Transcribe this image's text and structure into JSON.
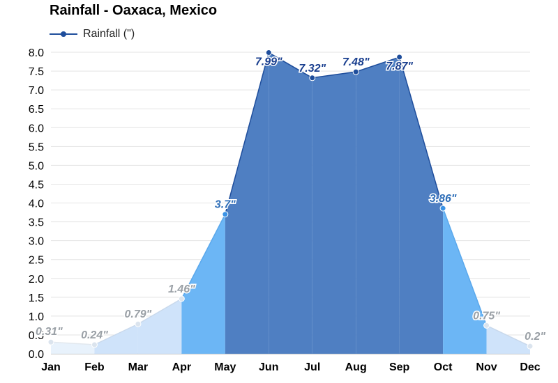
{
  "chart_data": {
    "type": "area",
    "title": "Rainfall - Oaxaca, Mexico",
    "legend": {
      "position": "top-left",
      "entries": [
        "Rainfall (\")"
      ]
    },
    "categories": [
      "Jan",
      "Feb",
      "Mar",
      "Apr",
      "May",
      "Jun",
      "Jul",
      "Aug",
      "Sep",
      "Oct",
      "Nov",
      "Dec"
    ],
    "series": [
      {
        "name": "Rainfall (\")",
        "values": [
          0.31,
          0.24,
          0.79,
          1.46,
          3.7,
          7.99,
          7.32,
          7.48,
          7.87,
          3.86,
          0.75,
          0.2
        ],
        "labels": [
          "0.31\"",
          "0.24\"",
          "0.79\"",
          "1.46\"",
          "3.7\"",
          "7.99\"",
          "7.32\"",
          "7.48\"",
          "7.87\"",
          "3.86\"",
          "0.75\"",
          "0.2\""
        ]
      }
    ],
    "ylim": [
      0,
      8
    ],
    "yticks": [
      "0.0",
      "0.5",
      "1.0",
      "1.5",
      "2.0",
      "2.5",
      "3.0",
      "3.5",
      "4.0",
      "4.5",
      "5.0",
      "5.5",
      "6.0",
      "6.5",
      "7.0",
      "7.5",
      "8.0"
    ],
    "grid": true,
    "colors": {
      "low_fill": "#e8f2fc",
      "mid_low_fill": "#cfe3fa",
      "mid_fill": "#6cb6f5",
      "high_fill": "#4f7fc2",
      "high_line": "#1f4e9c",
      "low_label": "#9aa0a6",
      "mid_label": "#2f6fb8",
      "high_label": "#1a3f8f"
    }
  }
}
